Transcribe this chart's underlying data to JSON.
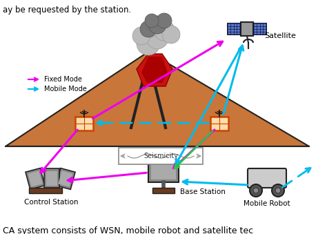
{
  "bg_color": "#ffffff",
  "title_top": "ay be requested by the station.",
  "title_bottom": "CA system consists of WSN, mobile robot and satellite tec",
  "volcano_color": "#c8763a",
  "lava_color": "#cc1111",
  "lava_dark": "#8b0000",
  "smoke_light": "#bbbbbb",
  "smoke_dark": "#777777",
  "arrow_fixed": "#ee00ee",
  "arrow_mobile": "#00bbee",
  "arrow_green": "#22cc44",
  "legend_fixed": "Fixed Mode",
  "legend_mobile": "Mobile Mode",
  "label_satellite": "Satellite",
  "label_control": "Control Station",
  "label_base": "Base Station",
  "label_mobile_robot": "Mobile Robot",
  "label_seismicity": "Seismicity",
  "panel_color": "#5577cc",
  "device_gray": "#888888",
  "device_lgray": "#aaaaaa",
  "device_dark": "#444444",
  "wsn_fill": "#ffddaa",
  "wsn_edge": "#cc4400",
  "brown": "#6b3a1f"
}
